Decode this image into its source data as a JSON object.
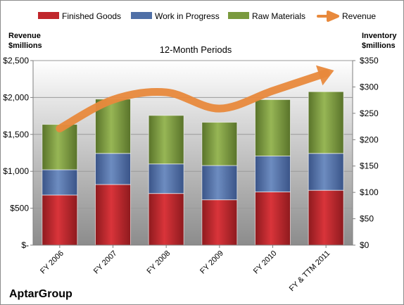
{
  "chart_data": {
    "type": "bar",
    "stacked": true,
    "title": "12-Month Periods",
    "left_axis_label": [
      "Revenue",
      "$millions"
    ],
    "right_axis_label": [
      "Inventory",
      "$millions"
    ],
    "categories": [
      "FY 2006",
      "FY 2007",
      "FY 2008",
      "FY 2009",
      "FY 2010",
      "FY & TTM 2011"
    ],
    "left_axis": {
      "range": [
        0,
        2500
      ],
      "ticks": [
        0,
        500,
        1000,
        1500,
        2000,
        2500
      ],
      "tick_labels": [
        "$-",
        "$500",
        "$1,000",
        "$1,500",
        "$2,000",
        "$2,500"
      ]
    },
    "right_axis": {
      "range": [
        0,
        350
      ],
      "ticks": [
        0,
        50,
        100,
        150,
        200,
        250,
        300,
        350
      ],
      "tick_labels": [
        "$0",
        "$50",
        "$100",
        "$150",
        "$200",
        "$250",
        "$300",
        "$350"
      ]
    },
    "series": [
      {
        "name": "Finished Goods",
        "axis": "right",
        "color": "#c0262b",
        "values": [
          95,
          115,
          98,
          86,
          101,
          104
        ]
      },
      {
        "name": "Work in Progress",
        "axis": "right",
        "color": "#4f6fa6",
        "values": [
          48,
          59,
          56,
          65,
          68,
          70
        ]
      },
      {
        "name": "Raw Materials",
        "axis": "right",
        "color": "#7a9a3e",
        "values": [
          86,
          103,
          92,
          82,
          107,
          117
        ]
      }
    ],
    "line_series": {
      "name": "Revenue",
      "axis": "left",
      "color": "#e8893c",
      "values": [
        1580,
        1970,
        2070,
        1850,
        2090,
        2330
      ]
    },
    "legend_position": "top",
    "grid": true
  },
  "footer": {
    "company": "AptarGroup"
  }
}
